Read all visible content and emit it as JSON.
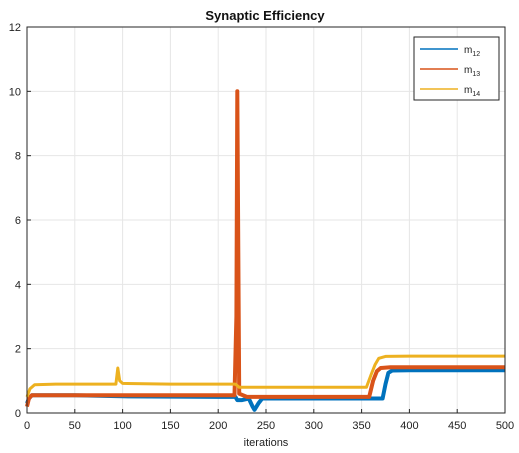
{
  "chart_data": {
    "type": "line",
    "title": "Synaptic Efficiency",
    "xlabel": "iterations",
    "ylabel": "",
    "xlim": [
      0,
      500
    ],
    "ylim": [
      0,
      12
    ],
    "xticks": [
      0,
      50,
      100,
      150,
      200,
      250,
      300,
      350,
      400,
      450,
      500
    ],
    "yticks": [
      0,
      2,
      4,
      6,
      8,
      10,
      12
    ],
    "grid": true,
    "legend_position": "top-right",
    "series": [
      {
        "name": "m12",
        "name_base": "m",
        "name_sub": "12",
        "color": "#0072BD",
        "points": [
          [
            0,
            0.3
          ],
          [
            2,
            0.45
          ],
          [
            5,
            0.55
          ],
          [
            50,
            0.55
          ],
          [
            100,
            0.52
          ],
          [
            200,
            0.5
          ],
          [
            218,
            0.5
          ],
          [
            220,
            0.4
          ],
          [
            225,
            0.4
          ],
          [
            232,
            0.45
          ],
          [
            236,
            0.2
          ],
          [
            238,
            0.1
          ],
          [
            242,
            0.3
          ],
          [
            246,
            0.45
          ],
          [
            300,
            0.45
          ],
          [
            372,
            0.45
          ],
          [
            375,
            0.9
          ],
          [
            378,
            1.25
          ],
          [
            382,
            1.32
          ],
          [
            400,
            1.33
          ],
          [
            500,
            1.33
          ]
        ]
      },
      {
        "name": "m13",
        "name_base": "m",
        "name_sub": "13",
        "color": "#D95319",
        "points": [
          [
            0,
            0.2
          ],
          [
            2,
            0.45
          ],
          [
            5,
            0.55
          ],
          [
            50,
            0.55
          ],
          [
            100,
            0.55
          ],
          [
            200,
            0.55
          ],
          [
            217,
            0.55
          ],
          [
            219,
            3.0
          ],
          [
            220,
            10.0
          ],
          [
            221,
            5.0
          ],
          [
            222,
            0.6
          ],
          [
            230,
            0.5
          ],
          [
            300,
            0.5
          ],
          [
            358,
            0.5
          ],
          [
            362,
            1.0
          ],
          [
            366,
            1.3
          ],
          [
            370,
            1.4
          ],
          [
            380,
            1.42
          ],
          [
            500,
            1.42
          ]
        ]
      },
      {
        "name": "m14",
        "name_base": "m",
        "name_sub": "14",
        "color": "#EDB120",
        "points": [
          [
            0,
            0.5
          ],
          [
            3,
            0.75
          ],
          [
            8,
            0.88
          ],
          [
            30,
            0.9
          ],
          [
            90,
            0.9
          ],
          [
            93,
            0.9
          ],
          [
            95,
            1.4
          ],
          [
            97,
            1.0
          ],
          [
            100,
            0.92
          ],
          [
            150,
            0.9
          ],
          [
            200,
            0.9
          ],
          [
            218,
            0.9
          ],
          [
            222,
            0.8
          ],
          [
            260,
            0.8
          ],
          [
            300,
            0.8
          ],
          [
            355,
            0.8
          ],
          [
            360,
            1.2
          ],
          [
            364,
            1.5
          ],
          [
            368,
            1.7
          ],
          [
            375,
            1.76
          ],
          [
            400,
            1.77
          ],
          [
            500,
            1.77
          ]
        ]
      }
    ]
  }
}
